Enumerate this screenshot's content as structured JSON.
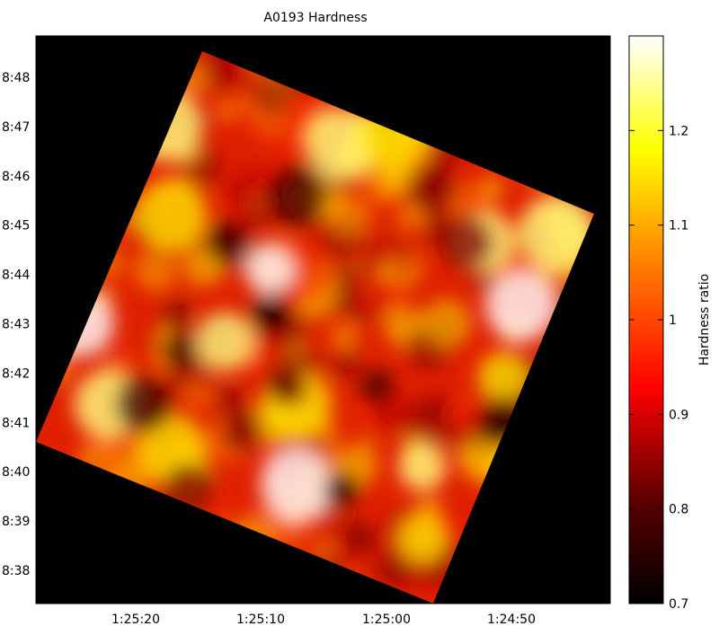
{
  "chart_data": {
    "type": "heatmap",
    "title": "A0193 Hardness",
    "xlabel": "",
    "ylabel": "",
    "x_tick_labels": [
      "1:25:20",
      "1:25:10",
      "1:25:00",
      "1:24:50"
    ],
    "y_tick_labels": [
      "8:48",
      "8:47",
      "8:46",
      "8:45",
      "8:44",
      "8:43",
      "8:42",
      "8:41",
      "8:40",
      "8:39",
      "8:38"
    ],
    "colorbar": {
      "label": "Hardness ratio",
      "range": [
        0.7,
        1.3
      ],
      "ticks": [
        0.7,
        0.8,
        0.9,
        1.0,
        1.1,
        1.2
      ],
      "tick_labels": [
        "0.7",
        "0.8",
        "0.9",
        "1",
        "1.1",
        "1.2"
      ],
      "colormap": "hot"
    },
    "background_color": "#000000",
    "grid": false
  }
}
